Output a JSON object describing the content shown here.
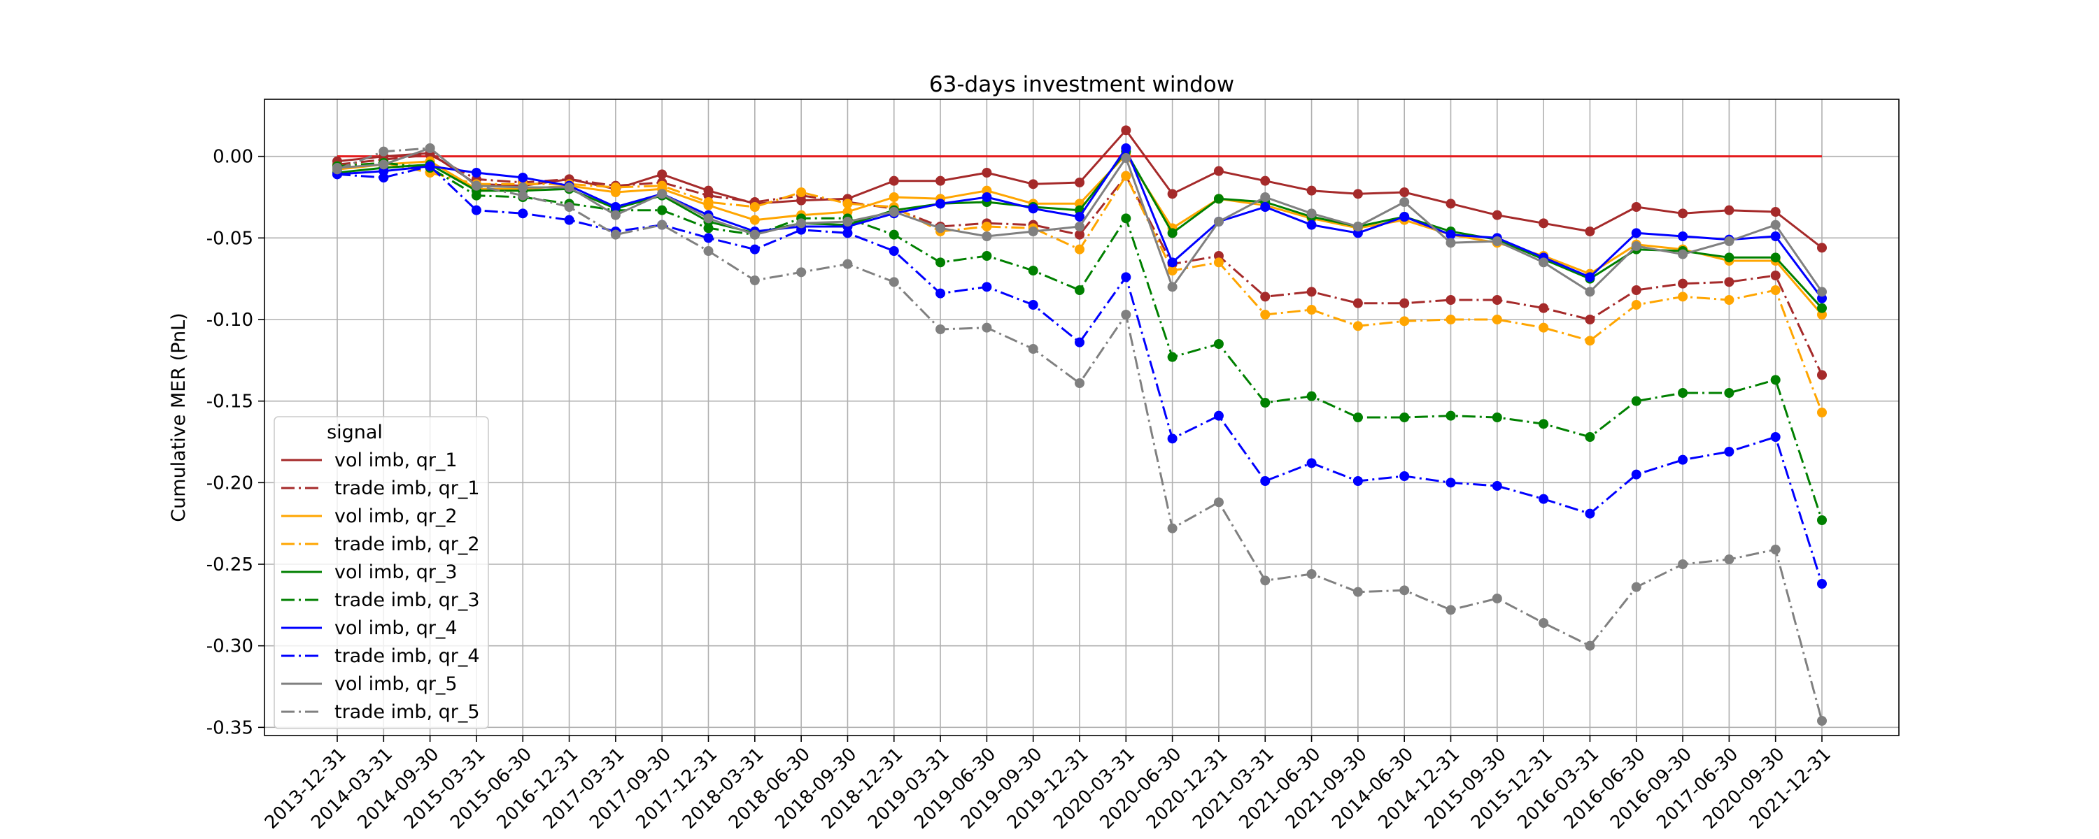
{
  "chart_data": {
    "type": "line",
    "title": "63-days investment window",
    "xlabel": "",
    "ylabel": "Cumulative MER (PnL)",
    "ylim": [
      -0.355,
      0.035
    ],
    "yticks": [
      "0.00",
      "-0.05",
      "-0.10",
      "-0.15",
      "-0.20",
      "-0.25",
      "-0.30",
      "-0.35"
    ],
    "grid": true,
    "legend": {
      "title": "signal",
      "placement": "lower-left"
    },
    "reference_line": {
      "value": 0.0,
      "color": "#e41a1c"
    },
    "categories": [
      "2013-12-31",
      "2014-03-31",
      "2014-09-30",
      "2015-03-31",
      "2015-06-30",
      "2016-12-31",
      "2017-03-31",
      "2017-09-30",
      "2017-12-31",
      "2018-03-31",
      "2018-06-30",
      "2018-09-30",
      "2018-12-31",
      "2019-03-31",
      "2019-06-30",
      "2019-09-30",
      "2019-12-31",
      "2020-03-31",
      "2020-06-30",
      "2020-12-31",
      "2021-03-31",
      "2021-06-30",
      "2021-09-30",
      "2014-06-30",
      "2014-12-31",
      "2015-09-30",
      "2015-12-31",
      "2016-03-31",
      "2016-06-30",
      "2016-09-30",
      "2017-06-30",
      "2020-09-30",
      "2021-12-31"
    ],
    "series": [
      {
        "name": "vol imb, qr_1",
        "color": "#a52a2a",
        "style": "solid",
        "values": [
          -0.003,
          0.0,
          0.002,
          -0.017,
          -0.018,
          -0.014,
          -0.02,
          -0.011,
          -0.021,
          -0.029,
          -0.027,
          -0.026,
          -0.015,
          -0.015,
          -0.01,
          -0.017,
          -0.016,
          0.016,
          -0.023,
          -0.009,
          -0.015,
          -0.021,
          -0.023,
          -0.022,
          -0.029,
          -0.036,
          -0.041,
          -0.046,
          -0.031,
          -0.035,
          -0.033,
          -0.034,
          -0.056
        ]
      },
      {
        "name": "trade imb, qr_1",
        "color": "#a52a2a",
        "style": "dashdot",
        "values": [
          -0.005,
          -0.002,
          0.001,
          -0.014,
          -0.016,
          -0.014,
          -0.018,
          -0.016,
          -0.024,
          -0.028,
          -0.024,
          -0.028,
          -0.032,
          -0.043,
          -0.041,
          -0.042,
          -0.048,
          -0.012,
          -0.066,
          -0.061,
          -0.086,
          -0.083,
          -0.09,
          -0.09,
          -0.088,
          -0.088,
          -0.093,
          -0.1,
          -0.082,
          -0.078,
          -0.077,
          -0.073,
          -0.134
        ]
      },
      {
        "name": "vol imb, qr_2",
        "color": "#ffa500",
        "style": "solid",
        "values": [
          -0.008,
          -0.005,
          -0.003,
          -0.02,
          -0.02,
          -0.018,
          -0.022,
          -0.02,
          -0.03,
          -0.039,
          -0.036,
          -0.034,
          -0.025,
          -0.026,
          -0.021,
          -0.029,
          -0.029,
          0.001,
          -0.044,
          -0.026,
          -0.03,
          -0.038,
          -0.044,
          -0.039,
          -0.048,
          -0.053,
          -0.061,
          -0.072,
          -0.054,
          -0.057,
          -0.064,
          -0.064,
          -0.097
        ]
      },
      {
        "name": "trade imb, qr_2",
        "color": "#ffa500",
        "style": "dashdot",
        "values": [
          -0.006,
          -0.004,
          -0.01,
          -0.017,
          -0.017,
          -0.017,
          -0.019,
          -0.018,
          -0.028,
          -0.031,
          -0.022,
          -0.029,
          -0.031,
          -0.046,
          -0.043,
          -0.044,
          -0.057,
          -0.012,
          -0.07,
          -0.065,
          -0.097,
          -0.094,
          -0.104,
          -0.101,
          -0.1,
          -0.1,
          -0.105,
          -0.113,
          -0.091,
          -0.086,
          -0.088,
          -0.082,
          -0.157
        ]
      },
      {
        "name": "vol imb, qr_3",
        "color": "#008000",
        "style": "solid",
        "values": [
          -0.01,
          -0.007,
          -0.005,
          -0.021,
          -0.021,
          -0.02,
          -0.032,
          -0.024,
          -0.04,
          -0.047,
          -0.041,
          -0.042,
          -0.033,
          -0.029,
          -0.028,
          -0.031,
          -0.033,
          0.003,
          -0.047,
          -0.026,
          -0.028,
          -0.037,
          -0.043,
          -0.037,
          -0.046,
          -0.051,
          -0.063,
          -0.075,
          -0.057,
          -0.058,
          -0.062,
          -0.062,
          -0.093
        ]
      },
      {
        "name": "trade imb, qr_3",
        "color": "#008000",
        "style": "dashdot",
        "values": [
          -0.006,
          -0.004,
          -0.007,
          -0.024,
          -0.025,
          -0.029,
          -0.033,
          -0.033,
          -0.044,
          -0.048,
          -0.038,
          -0.038,
          -0.048,
          -0.065,
          -0.061,
          -0.07,
          -0.082,
          -0.038,
          -0.123,
          -0.115,
          -0.151,
          -0.147,
          -0.16,
          -0.16,
          -0.159,
          -0.16,
          -0.164,
          -0.172,
          -0.15,
          -0.145,
          -0.145,
          -0.137,
          -0.223
        ]
      },
      {
        "name": "vol imb, qr_4",
        "color": "#0000ff",
        "style": "solid",
        "values": [
          -0.011,
          -0.009,
          -0.006,
          -0.01,
          -0.013,
          -0.018,
          -0.031,
          -0.023,
          -0.036,
          -0.046,
          -0.043,
          -0.043,
          -0.035,
          -0.029,
          -0.025,
          -0.032,
          -0.037,
          0.005,
          -0.065,
          -0.04,
          -0.031,
          -0.042,
          -0.047,
          -0.037,
          -0.048,
          -0.05,
          -0.062,
          -0.074,
          -0.047,
          -0.049,
          -0.051,
          -0.049,
          -0.087
        ]
      },
      {
        "name": "trade imb, qr_4",
        "color": "#0000ff",
        "style": "dashdot",
        "values": [
          -0.011,
          -0.013,
          -0.006,
          -0.033,
          -0.035,
          -0.039,
          -0.046,
          -0.042,
          -0.05,
          -0.057,
          -0.045,
          -0.047,
          -0.058,
          -0.084,
          -0.08,
          -0.091,
          -0.114,
          -0.074,
          -0.173,
          -0.159,
          -0.199,
          -0.188,
          -0.199,
          -0.196,
          -0.2,
          -0.202,
          -0.21,
          -0.219,
          -0.195,
          -0.186,
          -0.181,
          -0.172,
          -0.262
        ]
      },
      {
        "name": "vol imb, qr_5",
        "color": "#808080",
        "style": "solid",
        "values": [
          -0.007,
          -0.005,
          0.005,
          -0.018,
          -0.019,
          -0.019,
          -0.036,
          -0.023,
          -0.038,
          -0.048,
          -0.041,
          -0.04,
          -0.034,
          -0.044,
          -0.049,
          -0.046,
          -0.043,
          -0.001,
          -0.08,
          -0.04,
          -0.025,
          -0.035,
          -0.043,
          -0.028,
          -0.053,
          -0.052,
          -0.065,
          -0.083,
          -0.055,
          -0.06,
          -0.052,
          -0.042,
          -0.083
        ]
      },
      {
        "name": "trade imb, qr_5",
        "color": "#808080",
        "style": "dashdot",
        "values": [
          -0.008,
          0.003,
          0.005,
          -0.018,
          -0.024,
          -0.031,
          -0.048,
          -0.042,
          -0.058,
          -0.076,
          -0.071,
          -0.066,
          -0.077,
          -0.106,
          -0.105,
          -0.118,
          -0.139,
          -0.097,
          -0.228,
          -0.212,
          -0.26,
          -0.256,
          -0.267,
          -0.266,
          -0.278,
          -0.271,
          -0.286,
          -0.3,
          -0.264,
          -0.25,
          -0.247,
          -0.241,
          -0.346
        ]
      }
    ]
  }
}
